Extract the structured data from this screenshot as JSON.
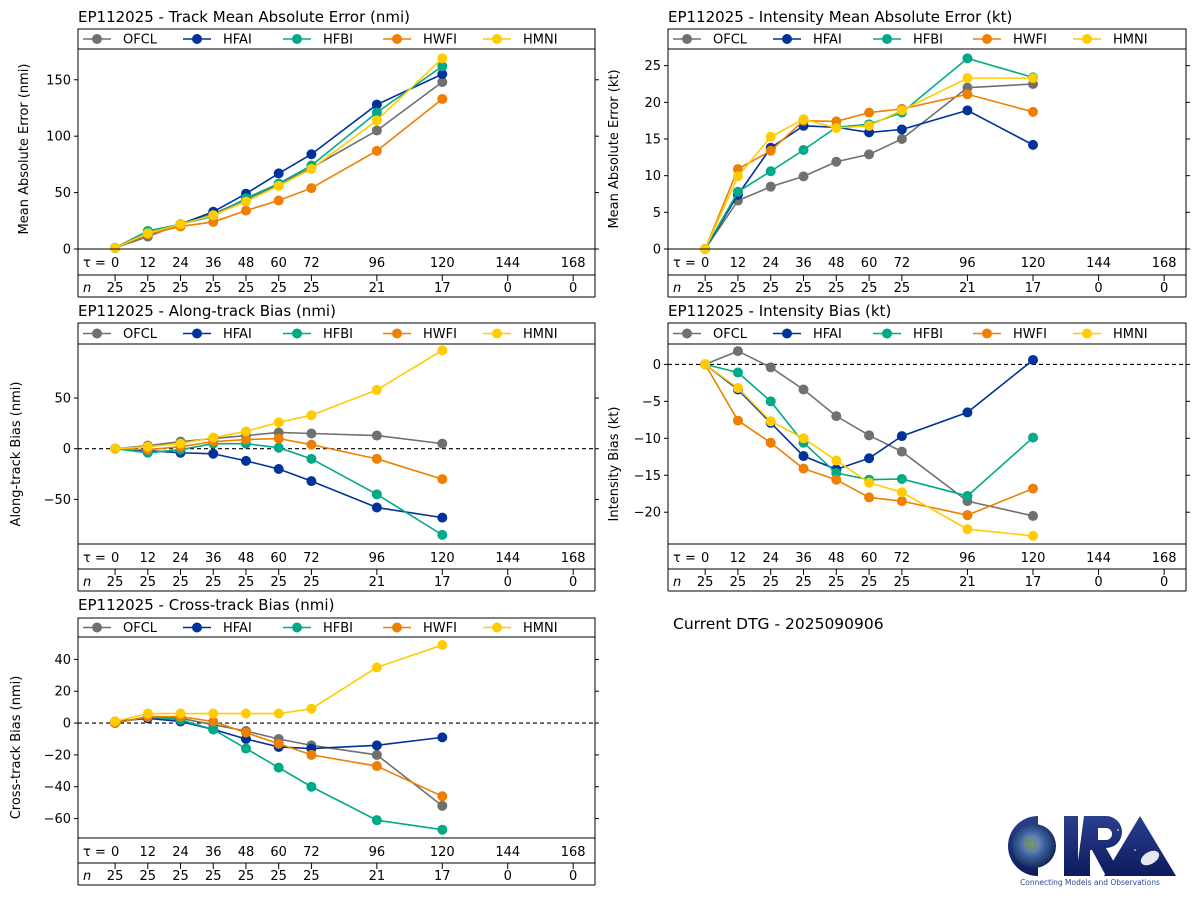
{
  "figure": {
    "storm_id": "EP112025",
    "current_dtg_text": "Current DTG - 2025090906",
    "logo": {
      "text": "CIRA",
      "tagline": "Connecting Models and Observations"
    }
  },
  "chart_data": [
    {
      "id": "track-mae",
      "type": "line",
      "title": "EP112025 - Track Mean Absolute Error (nmi)",
      "xlabel": "",
      "ylabel": "Mean Absolute Error (nmi)",
      "x": [
        0,
        12,
        24,
        36,
        48,
        60,
        72,
        96,
        120
      ],
      "xticks": [
        0,
        12,
        24,
        36,
        48,
        60,
        72,
        96,
        120,
        144,
        168
      ],
      "counts": [
        25,
        25,
        25,
        25,
        25,
        25,
        25,
        21,
        17,
        0,
        0
      ],
      "xlim": [
        -13.6,
        176
      ],
      "ylim": [
        0,
        195
      ],
      "yticks": [
        0,
        50,
        100,
        150
      ],
      "zero_line": false,
      "legend": "top",
      "series": [
        {
          "name": "OFCL",
          "color": "#707070",
          "values": [
            1,
            11,
            22,
            31,
            44,
            57,
            72,
            105,
            148
          ]
        },
        {
          "name": "HFAI",
          "color": "#003399",
          "values": [
            1,
            14,
            22,
            33,
            49,
            67,
            84,
            128,
            155
          ]
        },
        {
          "name": "HFBI",
          "color": "#00aa88",
          "values": [
            1,
            16,
            22,
            29,
            45,
            58,
            74,
            121,
            162
          ]
        },
        {
          "name": "HWFI",
          "color": "#ee7f00",
          "values": [
            1,
            13,
            20,
            24,
            34,
            43,
            54,
            87,
            133
          ]
        },
        {
          "name": "HMNI",
          "color": "#ffcc00",
          "values": [
            1,
            14,
            22,
            30,
            42,
            56,
            71,
            114,
            169
          ]
        }
      ]
    },
    {
      "id": "intensity-mae",
      "type": "line",
      "title": "EP112025 - Intensity Mean Absolute Error (kt)",
      "xlabel": "",
      "ylabel": "Mean Absolute Error (kt)",
      "x": [
        0,
        12,
        24,
        36,
        48,
        60,
        72,
        96,
        120
      ],
      "xticks": [
        0,
        12,
        24,
        36,
        48,
        60,
        72,
        96,
        120,
        144,
        168
      ],
      "counts": [
        25,
        25,
        25,
        25,
        25,
        25,
        25,
        21,
        17,
        0,
        0
      ],
      "xlim": [
        -13.6,
        176
      ],
      "ylim": [
        0,
        30
      ],
      "yticks": [
        0,
        5,
        10,
        15,
        20,
        25
      ],
      "zero_line": false,
      "legend": "top",
      "series": [
        {
          "name": "OFCL",
          "color": "#707070",
          "values": [
            0,
            6.6,
            8.5,
            9.9,
            11.9,
            12.9,
            15.0,
            22.0,
            22.5
          ]
        },
        {
          "name": "HFAI",
          "color": "#003399",
          "values": [
            0,
            7.4,
            13.8,
            16.8,
            16.6,
            15.9,
            16.3,
            18.9,
            14.2
          ]
        },
        {
          "name": "HFBI",
          "color": "#00aa88",
          "values": [
            0,
            7.8,
            10.6,
            13.5,
            16.6,
            17.0,
            18.6,
            26.0,
            23.4
          ]
        },
        {
          "name": "HWFI",
          "color": "#ee7f00",
          "values": [
            0,
            10.9,
            13.4,
            17.5,
            17.4,
            18.6,
            19.1,
            21.1,
            18.7
          ]
        },
        {
          "name": "HMNI",
          "color": "#ffcc00",
          "values": [
            0,
            9.9,
            15.3,
            17.7,
            16.5,
            16.8,
            18.9,
            23.3,
            23.3
          ]
        }
      ]
    },
    {
      "id": "along-track-bias",
      "type": "line",
      "title": "EP112025 - Along-track Bias (nmi)",
      "xlabel": "",
      "ylabel": "Along-track Bias (nmi)",
      "x": [
        0,
        12,
        24,
        36,
        48,
        60,
        72,
        96,
        120
      ],
      "xticks": [
        0,
        12,
        24,
        36,
        48,
        60,
        72,
        96,
        120,
        144,
        168
      ],
      "counts": [
        25,
        25,
        25,
        25,
        25,
        25,
        25,
        21,
        17,
        0,
        0
      ],
      "xlim": [
        -13.6,
        176
      ],
      "ylim": [
        -94,
        124
      ],
      "yticks": [
        -50,
        0,
        50
      ],
      "zero_line": true,
      "legend": "top",
      "series": [
        {
          "name": "OFCL",
          "color": "#707070",
          "values": [
            0,
            3,
            7,
            10,
            13,
            16,
            15,
            13,
            5
          ]
        },
        {
          "name": "HFAI",
          "color": "#003399",
          "values": [
            0,
            -2,
            -4,
            -5,
            -12,
            -20,
            -32,
            -58,
            -68
          ]
        },
        {
          "name": "HFBI",
          "color": "#00aa88",
          "values": [
            0,
            -4,
            -1,
            5,
            5,
            1,
            -10,
            -45,
            -85
          ]
        },
        {
          "name": "HWFI",
          "color": "#ee7f00",
          "values": [
            0,
            -1,
            2,
            7,
            9,
            10,
            4,
            -10,
            -30
          ]
        },
        {
          "name": "HMNI",
          "color": "#ffcc00",
          "values": [
            0,
            2,
            5,
            11,
            17,
            26,
            33,
            58,
            97
          ]
        }
      ]
    },
    {
      "id": "intensity-bias",
      "type": "line",
      "title": "EP112025 - Intensity Bias (kt)",
      "xlabel": "",
      "ylabel": "Intensity Bias (kt)",
      "x": [
        0,
        12,
        24,
        36,
        48,
        60,
        72,
        96,
        120
      ],
      "xticks": [
        0,
        12,
        24,
        36,
        48,
        60,
        72,
        96,
        120,
        144,
        168
      ],
      "counts": [
        25,
        25,
        25,
        25,
        25,
        25,
        25,
        21,
        17,
        0,
        0
      ],
      "xlim": [
        -13.6,
        176
      ],
      "ylim": [
        -24.3,
        5.6
      ],
      "yticks": [
        -20,
        -15,
        -10,
        -5,
        0
      ],
      "zero_line": true,
      "legend": "top",
      "series": [
        {
          "name": "OFCL",
          "color": "#707070",
          "values": [
            0,
            1.8,
            -0.4,
            -3.4,
            -7.0,
            -9.6,
            -11.8,
            -18.5,
            -20.5
          ]
        },
        {
          "name": "HFAI",
          "color": "#003399",
          "values": [
            0,
            -3.4,
            -7.9,
            -12.4,
            -14.2,
            -12.7,
            -9.7,
            -6.5,
            0.6
          ]
        },
        {
          "name": "HFBI",
          "color": "#00aa88",
          "values": [
            0,
            -1.1,
            -5.0,
            -10.6,
            -14.7,
            -15.6,
            -15.5,
            -17.8,
            -9.9
          ]
        },
        {
          "name": "HWFI",
          "color": "#ee7f00",
          "values": [
            0,
            -7.6,
            -10.6,
            -14.1,
            -15.6,
            -18.0,
            -18.5,
            -20.4,
            -16.8
          ]
        },
        {
          "name": "HMNI",
          "color": "#ffcc00",
          "values": [
            0,
            -3.2,
            -7.7,
            -10.0,
            -13.0,
            -16.0,
            -17.3,
            -22.3,
            -23.2
          ]
        }
      ]
    },
    {
      "id": "cross-track-bias",
      "type": "line",
      "title": "EP112025 - Cross-track Bias (nmi)",
      "xlabel": "",
      "ylabel": "Cross-track Bias (nmi)",
      "x": [
        0,
        12,
        24,
        36,
        48,
        60,
        72,
        96,
        120
      ],
      "xticks": [
        0,
        12,
        24,
        36,
        48,
        60,
        72,
        96,
        120,
        144,
        168
      ],
      "counts": [
        25,
        25,
        25,
        25,
        25,
        25,
        25,
        21,
        17,
        0,
        0
      ],
      "xlim": [
        -13.6,
        176
      ],
      "ylim": [
        -72.2,
        66
      ],
      "yticks": [
        -60,
        -40,
        -20,
        0,
        20,
        40
      ],
      "zero_line": true,
      "legend": "top",
      "series": [
        {
          "name": "OFCL",
          "color": "#707070",
          "values": [
            0,
            4,
            3,
            -1,
            -5,
            -10,
            -14,
            -20,
            -52
          ]
        },
        {
          "name": "HFAI",
          "color": "#003399",
          "values": [
            1,
            3,
            1,
            -4,
            -10,
            -15,
            -16,
            -14,
            -9
          ]
        },
        {
          "name": "HFBI",
          "color": "#00aa88",
          "values": [
            0,
            4,
            2,
            -4,
            -16,
            -28,
            -40,
            -61,
            -67
          ]
        },
        {
          "name": "HWFI",
          "color": "#ee7f00",
          "values": [
            0,
            4,
            4,
            1,
            -6,
            -13,
            -20,
            -27,
            -46
          ]
        },
        {
          "name": "HMNI",
          "color": "#ffcc00",
          "values": [
            1,
            6,
            6,
            6,
            6,
            6,
            9,
            35,
            49
          ]
        }
      ]
    }
  ],
  "labels": {
    "tau_prefix": "τ = ",
    "n_prefix": "n"
  }
}
